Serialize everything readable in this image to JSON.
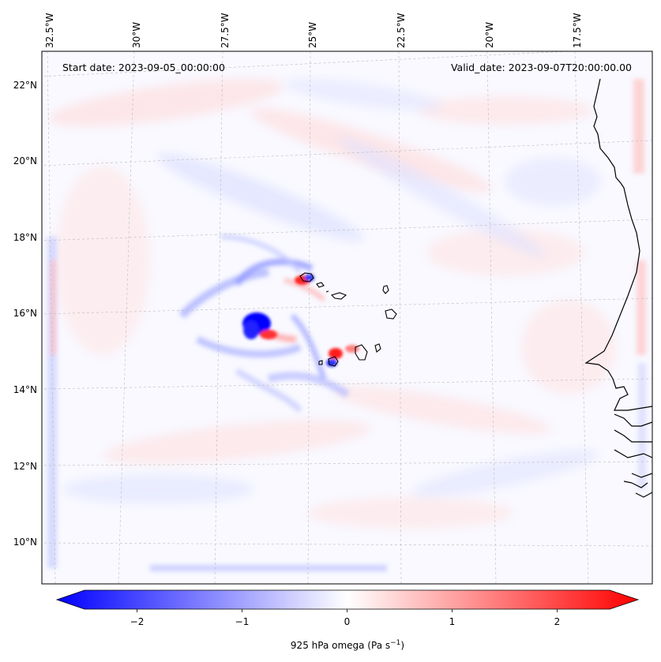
{
  "header": {
    "start_date": "Start date: 2023-09-05_00:00:00",
    "valid_date": "Valid_date: 2023-09-07T20:00:00.00"
  },
  "axes": {
    "lon_ticks": [
      "32.5°W",
      "30°W",
      "27.5°W",
      "25°W",
      "22.5°W",
      "20°W",
      "17.5°W"
    ],
    "lat_ticks": [
      "22°N",
      "20°N",
      "18°N",
      "16°N",
      "14°N",
      "12°N",
      "10°N"
    ]
  },
  "colorbar": {
    "label_main": "925 hPa omega (Pa s",
    "label_exp": "−1",
    "label_tail": ")",
    "tick_labels": [
      "−2",
      "−1",
      "0",
      "1",
      "2"
    ],
    "values": [
      -2,
      -1,
      0,
      1,
      2
    ],
    "vmin": -2.5,
    "vmax": 2.5,
    "extend": "both",
    "colormap": "bwr",
    "color_low": "#0000ff",
    "color_mid": "#ffffff",
    "color_high": "#ff0000"
  },
  "colors": {
    "coastline": "#000000",
    "gridline": "#bbbbbb"
  }
}
